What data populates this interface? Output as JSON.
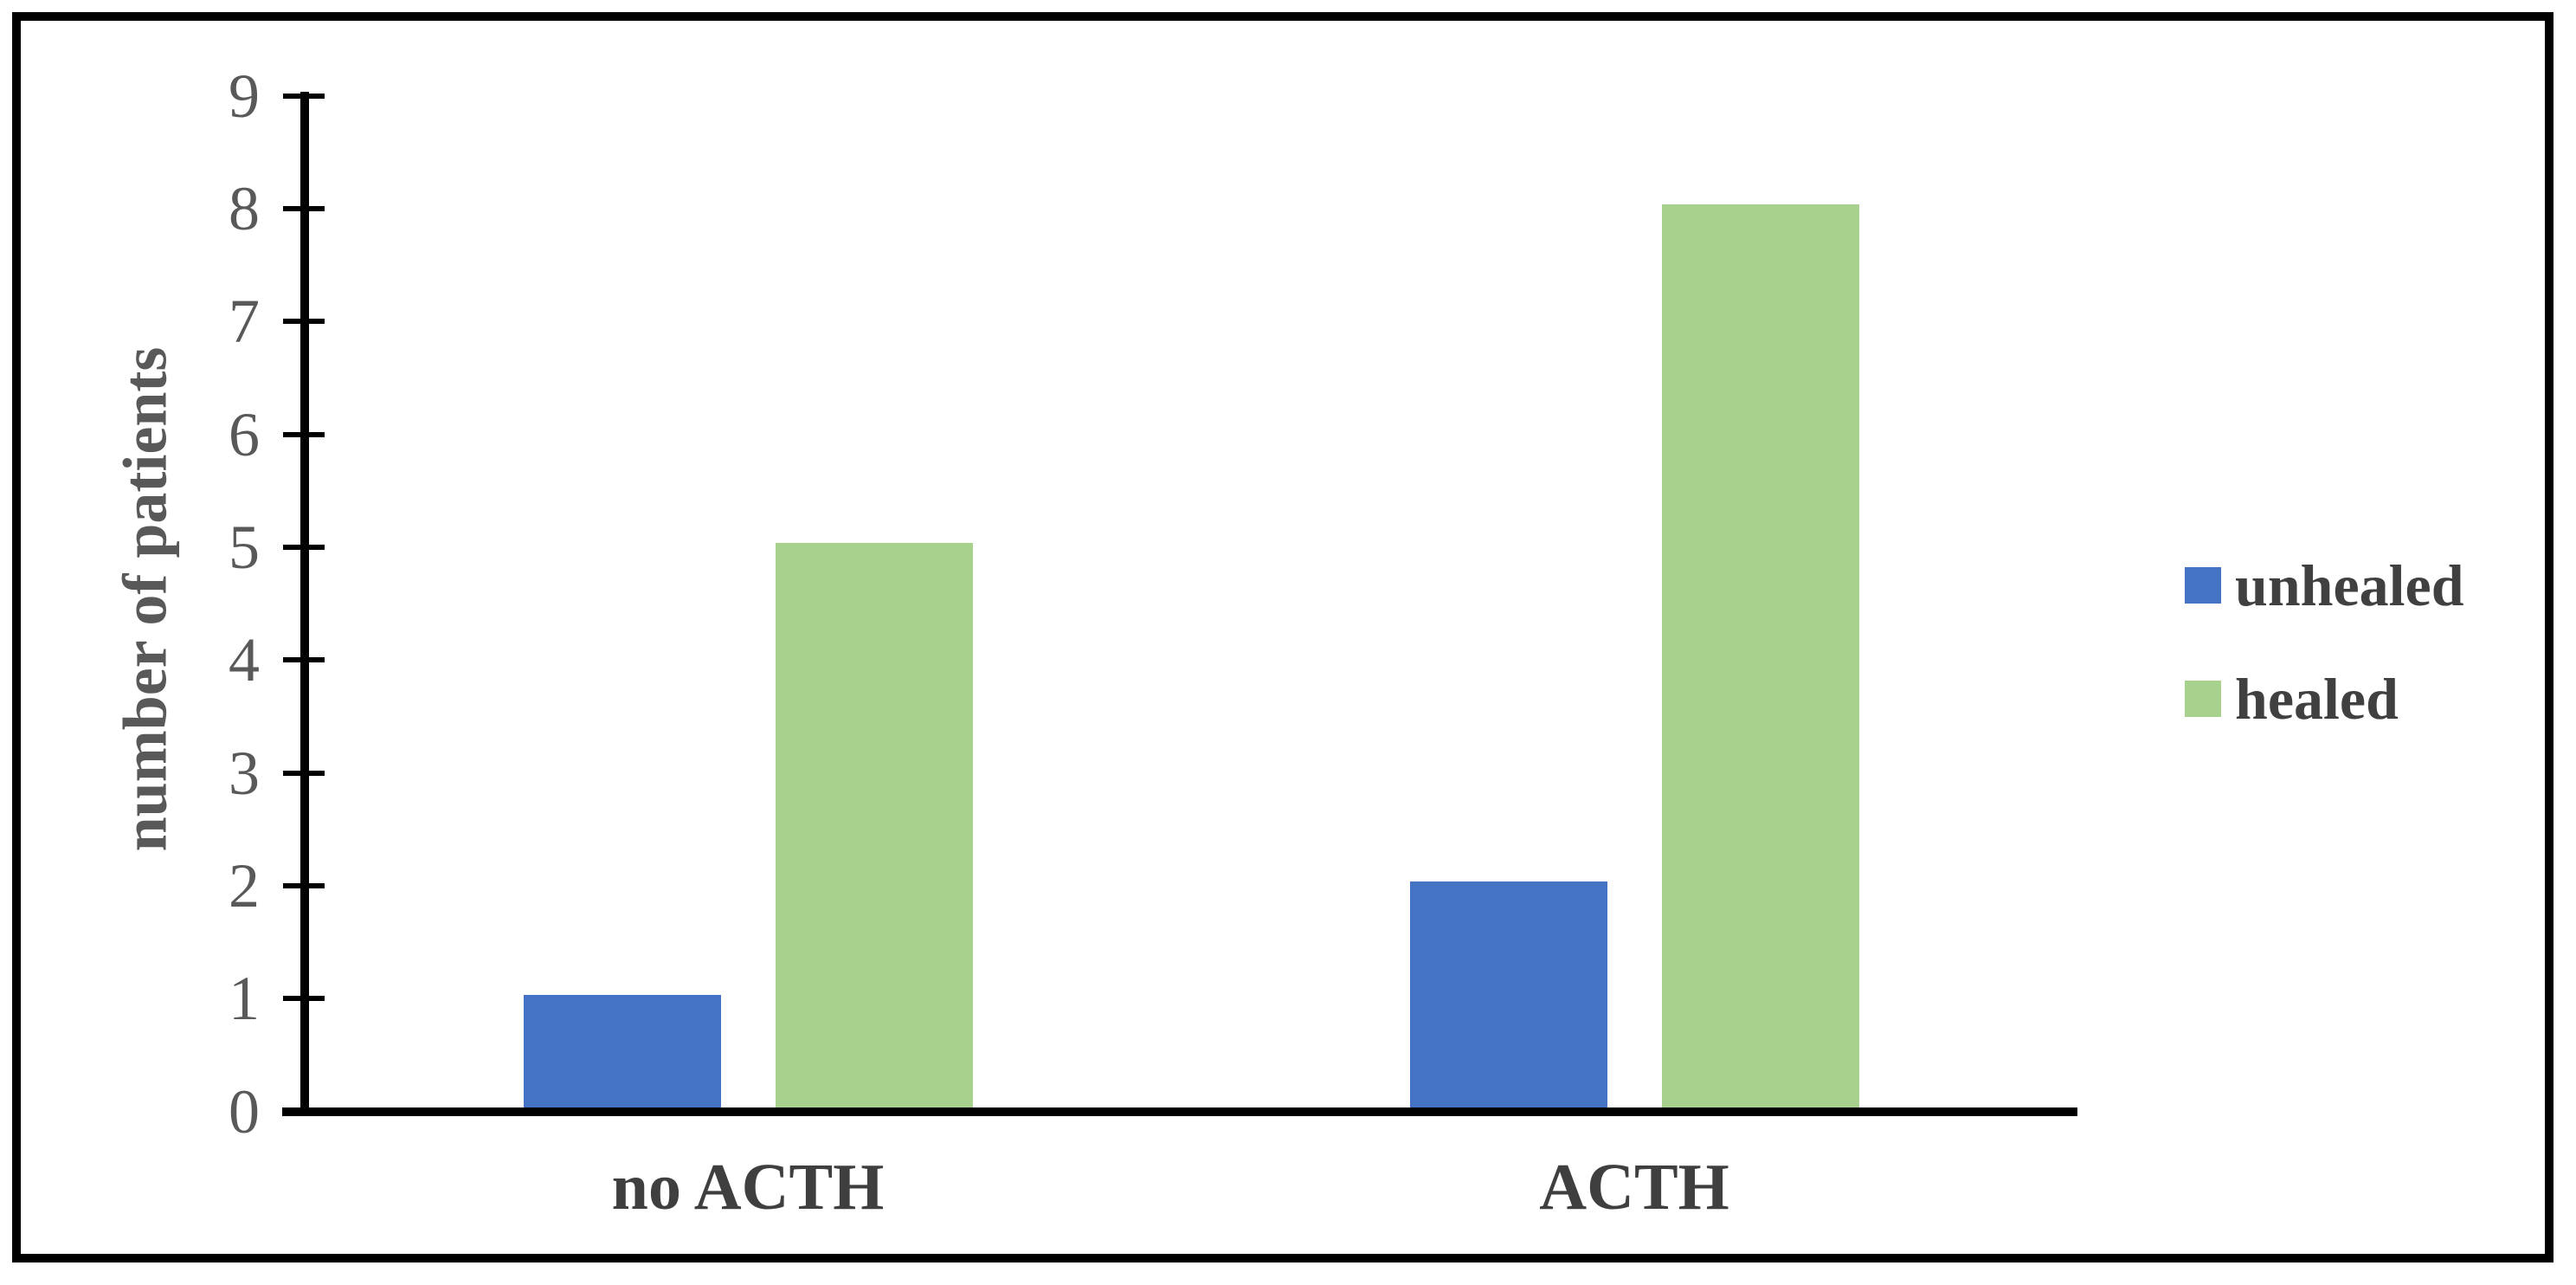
{
  "figure": {
    "kind": "clustered-bar-chart-screenshot"
  },
  "chart_data": {
    "type": "bar",
    "categories": [
      "no ACTH",
      "ACTH"
    ],
    "series": [
      {
        "name": "unhealed",
        "color": "#4472C4",
        "values": [
          1,
          2
        ]
      },
      {
        "name": "healed",
        "color": "#A9D18E",
        "values": [
          5,
          8
        ]
      }
    ],
    "title": "",
    "xlabel": "",
    "ylabel": "number of patients",
    "ylim": [
      0,
      9
    ],
    "yticks": [
      0,
      1,
      2,
      3,
      4,
      5,
      6,
      7,
      8,
      9
    ],
    "grid": false,
    "legend_position": "right"
  },
  "colors": {
    "background": "#FFFFFF",
    "border": "#000000",
    "axis": "#000000",
    "tick_label": "#595959",
    "axis_title": "#595959",
    "category_label": "#3F3F3F",
    "legend_text": "#404040"
  }
}
